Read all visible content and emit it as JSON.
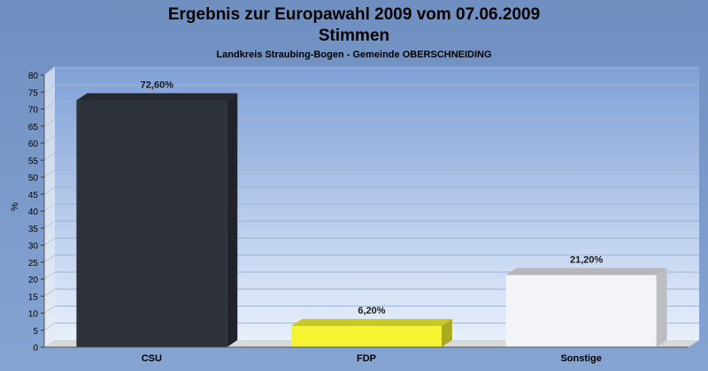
{
  "chart_data": {
    "type": "bar",
    "title": "Ergebnis zur Europawahl 2009 vom 07.06.2009",
    "title_line2": "Stimmen",
    "subtitle": "Landkreis Straubing-Bogen - Gemeinde OBERSCHNEIDING",
    "ylabel": "%",
    "xlabel": "",
    "ylim": [
      0,
      80
    ],
    "yticks": [
      0,
      5,
      10,
      15,
      20,
      25,
      30,
      35,
      40,
      45,
      50,
      55,
      60,
      65,
      70,
      75,
      80
    ],
    "grid": true,
    "categories": [
      "CSU",
      "FDP",
      "Sonstige"
    ],
    "values": [
      72.6,
      6.2,
      21.2
    ],
    "value_labels": [
      "72,60%",
      "6,20%",
      "21,20%"
    ],
    "colors": [
      "#2e323b",
      "#f4f432",
      "#f2f4f8"
    ]
  }
}
